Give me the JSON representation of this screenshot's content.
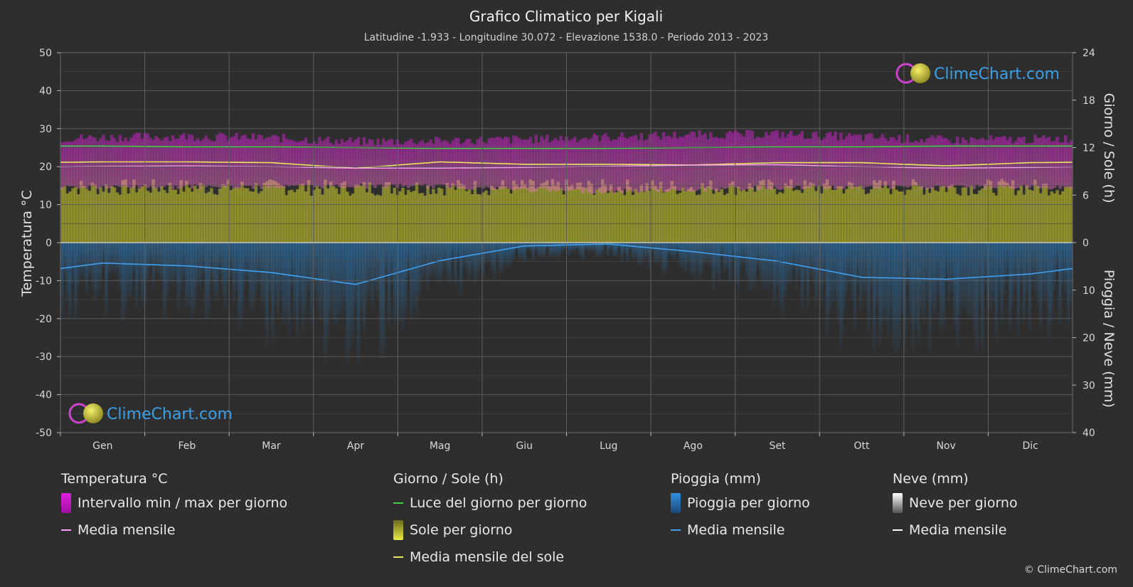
{
  "title": "Grafico Climatico per Kigali",
  "subtitle": "Latitudine -1.933 - Longitudine 30.072 - Elevazione 1538.0 - Periodo 2013 - 2023",
  "brand": "ClimeChart.com",
  "copyright": "© ClimeChart.com",
  "colors": {
    "background": "#2e2e2e",
    "temp_range": "#e020e0",
    "temp_mean": "#ff9ff3",
    "daylight": "#44cc44",
    "sunshine": "#c8c832",
    "sun_mean": "#e8e860",
    "rain": "#2f8fdf",
    "rain_mean": "#3fa0f0",
    "snow_mean": "#ffffff",
    "brand_text": "#3aa0e8"
  },
  "legend": {
    "temp": {
      "title": "Temperatura °C",
      "range": "Intervallo min / max per giorno",
      "mean": "Media mensile"
    },
    "sun": {
      "title": "Giorno / Sole (h)",
      "daylight": "Luce del giorno per giorno",
      "sunshine": "Sole per giorno",
      "mean": "Media mensile del sole"
    },
    "rain": {
      "title": "Pioggia (mm)",
      "daily": "Pioggia per giorno",
      "mean": "Media mensile"
    },
    "snow": {
      "title": "Neve (mm)",
      "daily": "Neve per giorno",
      "mean": "Media mensile"
    }
  },
  "chart_data": {
    "type": "area",
    "categories": [
      "Gen",
      "Feb",
      "Mar",
      "Apr",
      "Mag",
      "Giu",
      "Lug",
      "Ago",
      "Set",
      "Ott",
      "Nov",
      "Dic"
    ],
    "axes": {
      "left": {
        "label": "Temperatura °C",
        "ticks": [
          50,
          40,
          30,
          20,
          10,
          0,
          -10,
          -20,
          -30,
          -40,
          -50
        ],
        "range": [
          -50,
          50
        ]
      },
      "right_top": {
        "label": "Giorno / Sole (h)",
        "ticks": [
          24,
          18,
          12,
          6,
          0
        ],
        "range": [
          0,
          24
        ]
      },
      "right_bottom": {
        "label": "Pioggia / Neve (mm)",
        "ticks": [
          0,
          10,
          20,
          30,
          40
        ],
        "range": [
          0,
          40
        ]
      }
    },
    "grid": true,
    "series": [
      {
        "name": "Intervallo min / max per giorno",
        "axis": "left",
        "min": [
          15.2,
          15.3,
          15.3,
          15.5,
          15.4,
          14.5,
          14.0,
          14.6,
          15.0,
          15.1,
          15.2,
          15.2
        ],
        "max": [
          26.5,
          26.8,
          26.4,
          25.4,
          25.6,
          26.0,
          26.6,
          27.2,
          27.4,
          26.6,
          25.8,
          26.0
        ]
      },
      {
        "name": "Media mensile",
        "axis": "left",
        "values": [
          20.1,
          20.2,
          20.0,
          19.6,
          19.6,
          19.8,
          20.1,
          20.4,
          20.5,
          20.0,
          19.6,
          19.8
        ]
      },
      {
        "name": "Luce del giorno per giorno",
        "axis": "right_top",
        "values": [
          12.2,
          12.1,
          12.1,
          12.0,
          11.9,
          11.9,
          11.9,
          12.0,
          12.1,
          12.1,
          12.2,
          12.2
        ]
      },
      {
        "name": "Sole per giorno",
        "axis": "right_top",
        "values": [
          7.0,
          7.0,
          7.0,
          6.9,
          7.0,
          7.0,
          7.0,
          7.0,
          7.0,
          7.0,
          7.0,
          7.0
        ]
      },
      {
        "name": "Media mensile del sole",
        "axis": "right_top",
        "values": [
          10.2,
          10.2,
          10.1,
          9.4,
          10.2,
          9.9,
          9.9,
          9.8,
          10.1,
          10.1,
          9.7,
          10.1
        ]
      },
      {
        "name": "Pioggia per giorno",
        "axis": "right_bottom",
        "values": [
          4.3,
          4.9,
          6.3,
          8.8,
          3.8,
          0.7,
          0.3,
          1.9,
          3.9,
          7.3,
          7.7,
          6.6
        ]
      }
    ]
  }
}
